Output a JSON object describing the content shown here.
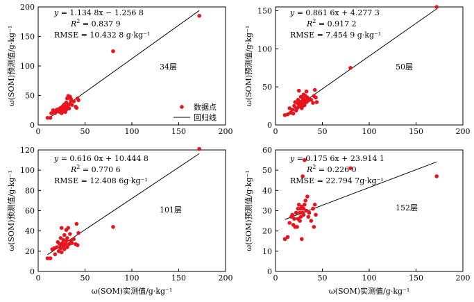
{
  "chart_data": [
    {
      "type": "scatter",
      "panel_label": "34层",
      "xlabel": "ω(SOM)实测值/g·kg⁻¹",
      "ylabel": "ω(SOM)预测值/g·kg⁻¹",
      "show_xlabel": false,
      "xlim": [
        0,
        200
      ],
      "ylim": [
        0,
        200
      ],
      "xticks": [
        0,
        50,
        100,
        150,
        200
      ],
      "yticks": [
        0,
        50,
        100,
        150,
        200
      ],
      "equation": {
        "a": "y",
        "b": " = 1.134 8x − 1.256 8",
        "c": "R",
        "d": "2",
        "e": " = 0.837 9",
        "f": "RMSE = 10.432 8 g·kg⁻¹"
      },
      "fit": {
        "slope": 1.1348,
        "intercept": -1.2568,
        "x_range": [
          10,
          172
        ]
      },
      "legend": {
        "points": "数据点",
        "line": "回归线"
      },
      "points": [
        [
          10,
          12
        ],
        [
          13,
          12
        ],
        [
          14,
          20
        ],
        [
          16,
          25
        ],
        [
          18,
          20
        ],
        [
          19,
          24
        ],
        [
          20,
          26
        ],
        [
          21,
          23
        ],
        [
          22,
          27
        ],
        [
          23,
          22
        ],
        [
          24,
          29
        ],
        [
          24,
          24
        ],
        [
          25,
          26
        ],
        [
          25,
          20
        ],
        [
          26,
          31
        ],
        [
          26,
          22
        ],
        [
          27,
          28
        ],
        [
          27,
          33
        ],
        [
          28,
          25
        ],
        [
          28,
          35
        ],
        [
          29,
          30
        ],
        [
          29,
          22
        ],
        [
          30,
          38
        ],
        [
          30,
          26
        ],
        [
          31,
          29
        ],
        [
          31,
          45
        ],
        [
          32,
          49
        ],
        [
          32,
          33
        ],
        [
          33,
          28
        ],
        [
          34,
          36
        ],
        [
          34,
          48
        ],
        [
          35,
          44
        ],
        [
          35,
          41
        ],
        [
          36,
          34
        ],
        [
          38,
          40
        ],
        [
          40,
          31
        ],
        [
          41,
          29
        ],
        [
          42,
          45
        ],
        [
          43,
          42
        ],
        [
          80,
          125
        ],
        [
          172,
          185
        ]
      ]
    },
    {
      "type": "scatter",
      "panel_label": "50层",
      "xlabel": "ω(SOM)实测值/g·kg⁻¹",
      "ylabel": "ω(SOM)预测值/g·kg⁻¹",
      "show_xlabel": false,
      "xlim": [
        0,
        200
      ],
      "ylim": [
        0,
        155
      ],
      "xticks": [
        0,
        50,
        100,
        150,
        200
      ],
      "yticks": [
        0,
        50,
        100,
        150
      ],
      "equation": {
        "a": "y",
        "b": " = 0.861 6x + 4.277 3",
        "c": "R",
        "d": "2",
        "e": " = 0.917 2",
        "f": "RMSE = 7.454 9 g·kg⁻¹"
      },
      "fit": {
        "slope": 0.8616,
        "intercept": 4.2773,
        "x_range": [
          10,
          172
        ]
      },
      "points": [
        [
          10,
          13
        ],
        [
          13,
          14
        ],
        [
          15,
          22
        ],
        [
          16,
          16
        ],
        [
          18,
          20
        ],
        [
          19,
          15
        ],
        [
          20,
          25
        ],
        [
          21,
          30
        ],
        [
          22,
          19
        ],
        [
          23,
          22
        ],
        [
          24,
          28
        ],
        [
          24,
          33
        ],
        [
          25,
          24
        ],
        [
          25,
          45
        ],
        [
          26,
          30
        ],
        [
          27,
          27
        ],
        [
          27,
          37
        ],
        [
          28,
          31
        ],
        [
          28,
          22
        ],
        [
          29,
          35
        ],
        [
          29,
          25
        ],
        [
          30,
          29
        ],
        [
          30,
          40
        ],
        [
          31,
          33
        ],
        [
          31,
          26
        ],
        [
          32,
          38
        ],
        [
          33,
          30
        ],
        [
          33,
          44
        ],
        [
          34,
          36
        ],
        [
          35,
          32
        ],
        [
          36,
          34
        ],
        [
          38,
          33
        ],
        [
          40,
          29
        ],
        [
          41,
          38
        ],
        [
          42,
          46
        ],
        [
          43,
          36
        ],
        [
          44,
          30
        ],
        [
          80,
          75
        ],
        [
          172,
          155
        ]
      ]
    },
    {
      "type": "scatter",
      "panel_label": "101层",
      "xlabel": "ω(SOM)实测值/g·kg⁻¹",
      "ylabel": "ω(SOM)预测值/g·kg⁻¹",
      "show_xlabel": true,
      "xlim": [
        0,
        200
      ],
      "ylim": [
        0,
        120
      ],
      "xticks": [
        0,
        50,
        100,
        150,
        200
      ],
      "yticks": [
        0,
        20,
        40,
        60,
        80,
        100,
        120
      ],
      "equation": {
        "a": "y",
        "b": " = 0.616 0x + 10.444 8",
        "c": "R",
        "d": "2",
        "e": " = 0.770 6",
        "f": "RMSE = 12.408 6g·kg⁻¹"
      },
      "fit": {
        "slope": 0.616,
        "intercept": 10.4448,
        "x_range": [
          10,
          172
        ]
      },
      "points": [
        [
          10,
          13
        ],
        [
          13,
          13
        ],
        [
          15,
          22
        ],
        [
          17,
          23
        ],
        [
          18,
          17
        ],
        [
          20,
          24
        ],
        [
          21,
          29
        ],
        [
          22,
          20
        ],
        [
          23,
          27
        ],
        [
          24,
          33
        ],
        [
          24,
          23
        ],
        [
          25,
          43
        ],
        [
          25,
          19
        ],
        [
          26,
          28
        ],
        [
          27,
          31
        ],
        [
          27,
          25
        ],
        [
          28,
          36
        ],
        [
          28,
          22
        ],
        [
          29,
          27
        ],
        [
          30,
          41
        ],
        [
          30,
          30
        ],
        [
          31,
          33
        ],
        [
          31,
          24
        ],
        [
          32,
          43
        ],
        [
          33,
          27
        ],
        [
          34,
          37
        ],
        [
          35,
          30
        ],
        [
          36,
          28
        ],
        [
          38,
          32
        ],
        [
          40,
          27
        ],
        [
          41,
          47
        ],
        [
          42,
          26
        ],
        [
          43,
          38
        ],
        [
          80,
          44
        ],
        [
          172,
          121
        ]
      ]
    },
    {
      "type": "scatter",
      "panel_label": "152层",
      "xlabel": "ω(SOM)实测值/g·kg⁻¹",
      "ylabel": "ω(SOM)预测值/g·kg⁻¹",
      "show_xlabel": true,
      "xlim": [
        0,
        200
      ],
      "ylim": [
        0,
        60
      ],
      "xticks": [
        0,
        50,
        100,
        150,
        200
      ],
      "yticks": [
        0,
        10,
        20,
        30,
        40,
        50,
        60
      ],
      "equation": {
        "a": "y",
        "b": " = 0.175 6x + 23.914 1",
        "c": "R",
        "d": "2",
        "e": " = 0.226 0",
        "f": "RMSE = 22.794 7g·kg⁻¹"
      },
      "fit": {
        "slope": 0.1756,
        "intercept": 23.9141,
        "x_range": [
          10,
          172
        ]
      },
      "points": [
        [
          10,
          16
        ],
        [
          13,
          17
        ],
        [
          15,
          24
        ],
        [
          17,
          27
        ],
        [
          18,
          28
        ],
        [
          19,
          23
        ],
        [
          20,
          26
        ],
        [
          21,
          22
        ],
        [
          22,
          29
        ],
        [
          23,
          22
        ],
        [
          24,
          31
        ],
        [
          24,
          26
        ],
        [
          25,
          33
        ],
        [
          26,
          29
        ],
        [
          26,
          25
        ],
        [
          27,
          27
        ],
        [
          27,
          31
        ],
        [
          28,
          16
        ],
        [
          28,
          32
        ],
        [
          29,
          29
        ],
        [
          29,
          47
        ],
        [
          30,
          31
        ],
        [
          30,
          28
        ],
        [
          31,
          55
        ],
        [
          31,
          33
        ],
        [
          32,
          35
        ],
        [
          33,
          30
        ],
        [
          34,
          37
        ],
        [
          35,
          27
        ],
        [
          36,
          29
        ],
        [
          38,
          25
        ],
        [
          40,
          31
        ],
        [
          41,
          22
        ],
        [
          42,
          33
        ],
        [
          43,
          28
        ],
        [
          80,
          51
        ],
        [
          172,
          47
        ]
      ]
    }
  ]
}
